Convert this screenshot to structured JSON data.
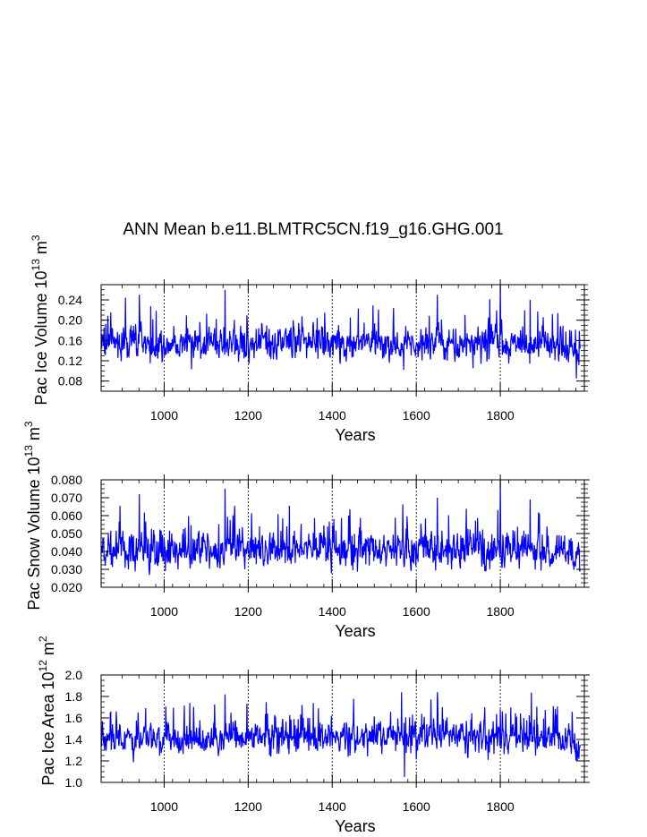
{
  "title": "ANN Mean b.e11.BLMTRC5CN.f19_g16.GHG.001",
  "chart_data": [
    {
      "type": "line",
      "title": "",
      "xlabel": "Years",
      "ylabel_parts": {
        "text": "Pac Ice Volume 10",
        "exp": "13",
        "unit": " m",
        "unit_exp": "3"
      },
      "xlim": [
        850,
        2000
      ],
      "ylim": [
        0.06,
        0.27
      ],
      "xticks": [
        1000,
        1200,
        1400,
        1600,
        1800
      ],
      "xtick_labels": [
        "1000",
        "1200",
        "1400",
        "1600",
        "1800"
      ],
      "yticks": [
        0.08,
        0.12,
        0.16,
        0.2,
        0.24
      ],
      "ytick_labels": [
        "0.08",
        "0.12",
        "0.16",
        "0.20",
        "0.24"
      ],
      "grid": "vertical dashed at major x ticks",
      "color": "#0000ff",
      "approx_stats": {
        "mean": 0.155,
        "min": 0.085,
        "max": 0.27
      },
      "spikes": [
        [
          941,
          0.25
        ],
        [
          1145,
          0.26
        ],
        [
          1650,
          0.25
        ],
        [
          1800,
          0.27
        ],
        [
          1871,
          0.24
        ]
      ]
    },
    {
      "type": "line",
      "title": "",
      "xlabel": "Years",
      "ylabel_parts": {
        "text": "Pac Snow Volume 10",
        "exp": "13",
        "unit": " m",
        "unit_exp": "3"
      },
      "xlim": [
        850,
        2000
      ],
      "ylim": [
        0.02,
        0.08
      ],
      "xticks": [
        1000,
        1200,
        1400,
        1600,
        1800
      ],
      "xtick_labels": [
        "1000",
        "1200",
        "1400",
        "1600",
        "1800"
      ],
      "yticks": [
        0.02,
        0.03,
        0.04,
        0.05,
        0.06,
        0.07,
        0.08
      ],
      "ytick_labels": [
        "0.020",
        "0.030",
        "0.040",
        "0.050",
        "0.060",
        "0.070",
        "0.080"
      ],
      "grid": "vertical dashed at major x ticks",
      "color": "#0000ff",
      "approx_stats": {
        "mean": 0.041,
        "min": 0.025,
        "max": 0.08
      },
      "spikes": [
        [
          941,
          0.072
        ],
        [
          1145,
          0.075
        ],
        [
          1650,
          0.07
        ],
        [
          1800,
          0.08
        ],
        [
          1871,
          0.069
        ]
      ]
    },
    {
      "type": "line",
      "title": "",
      "xlabel": "Years",
      "ylabel_parts": {
        "text": "Pac Ice Area 10",
        "exp": "12",
        "unit": " m",
        "unit_exp": "2"
      },
      "xlim": [
        850,
        2000
      ],
      "ylim": [
        1.0,
        2.0
      ],
      "xticks": [
        1000,
        1200,
        1400,
        1600,
        1800
      ],
      "xtick_labels": [
        "1000",
        "1200",
        "1400",
        "1600",
        "1800"
      ],
      "yticks": [
        1.0,
        1.2,
        1.4,
        1.6,
        1.8,
        2.0
      ],
      "ytick_labels": [
        "1.0",
        "1.2",
        "1.4",
        "1.6",
        "1.8",
        "2.0"
      ],
      "grid": "vertical dashed at major x ticks",
      "color": "#0000ff",
      "approx_stats": {
        "mean": 1.42,
        "min": 1.05,
        "max": 1.84
      },
      "spikes": [
        [
          1145,
          1.82
        ],
        [
          1565,
          1.84
        ],
        [
          1572,
          1.05
        ],
        [
          1650,
          1.84
        ],
        [
          1800,
          1.68
        ]
      ]
    }
  ]
}
